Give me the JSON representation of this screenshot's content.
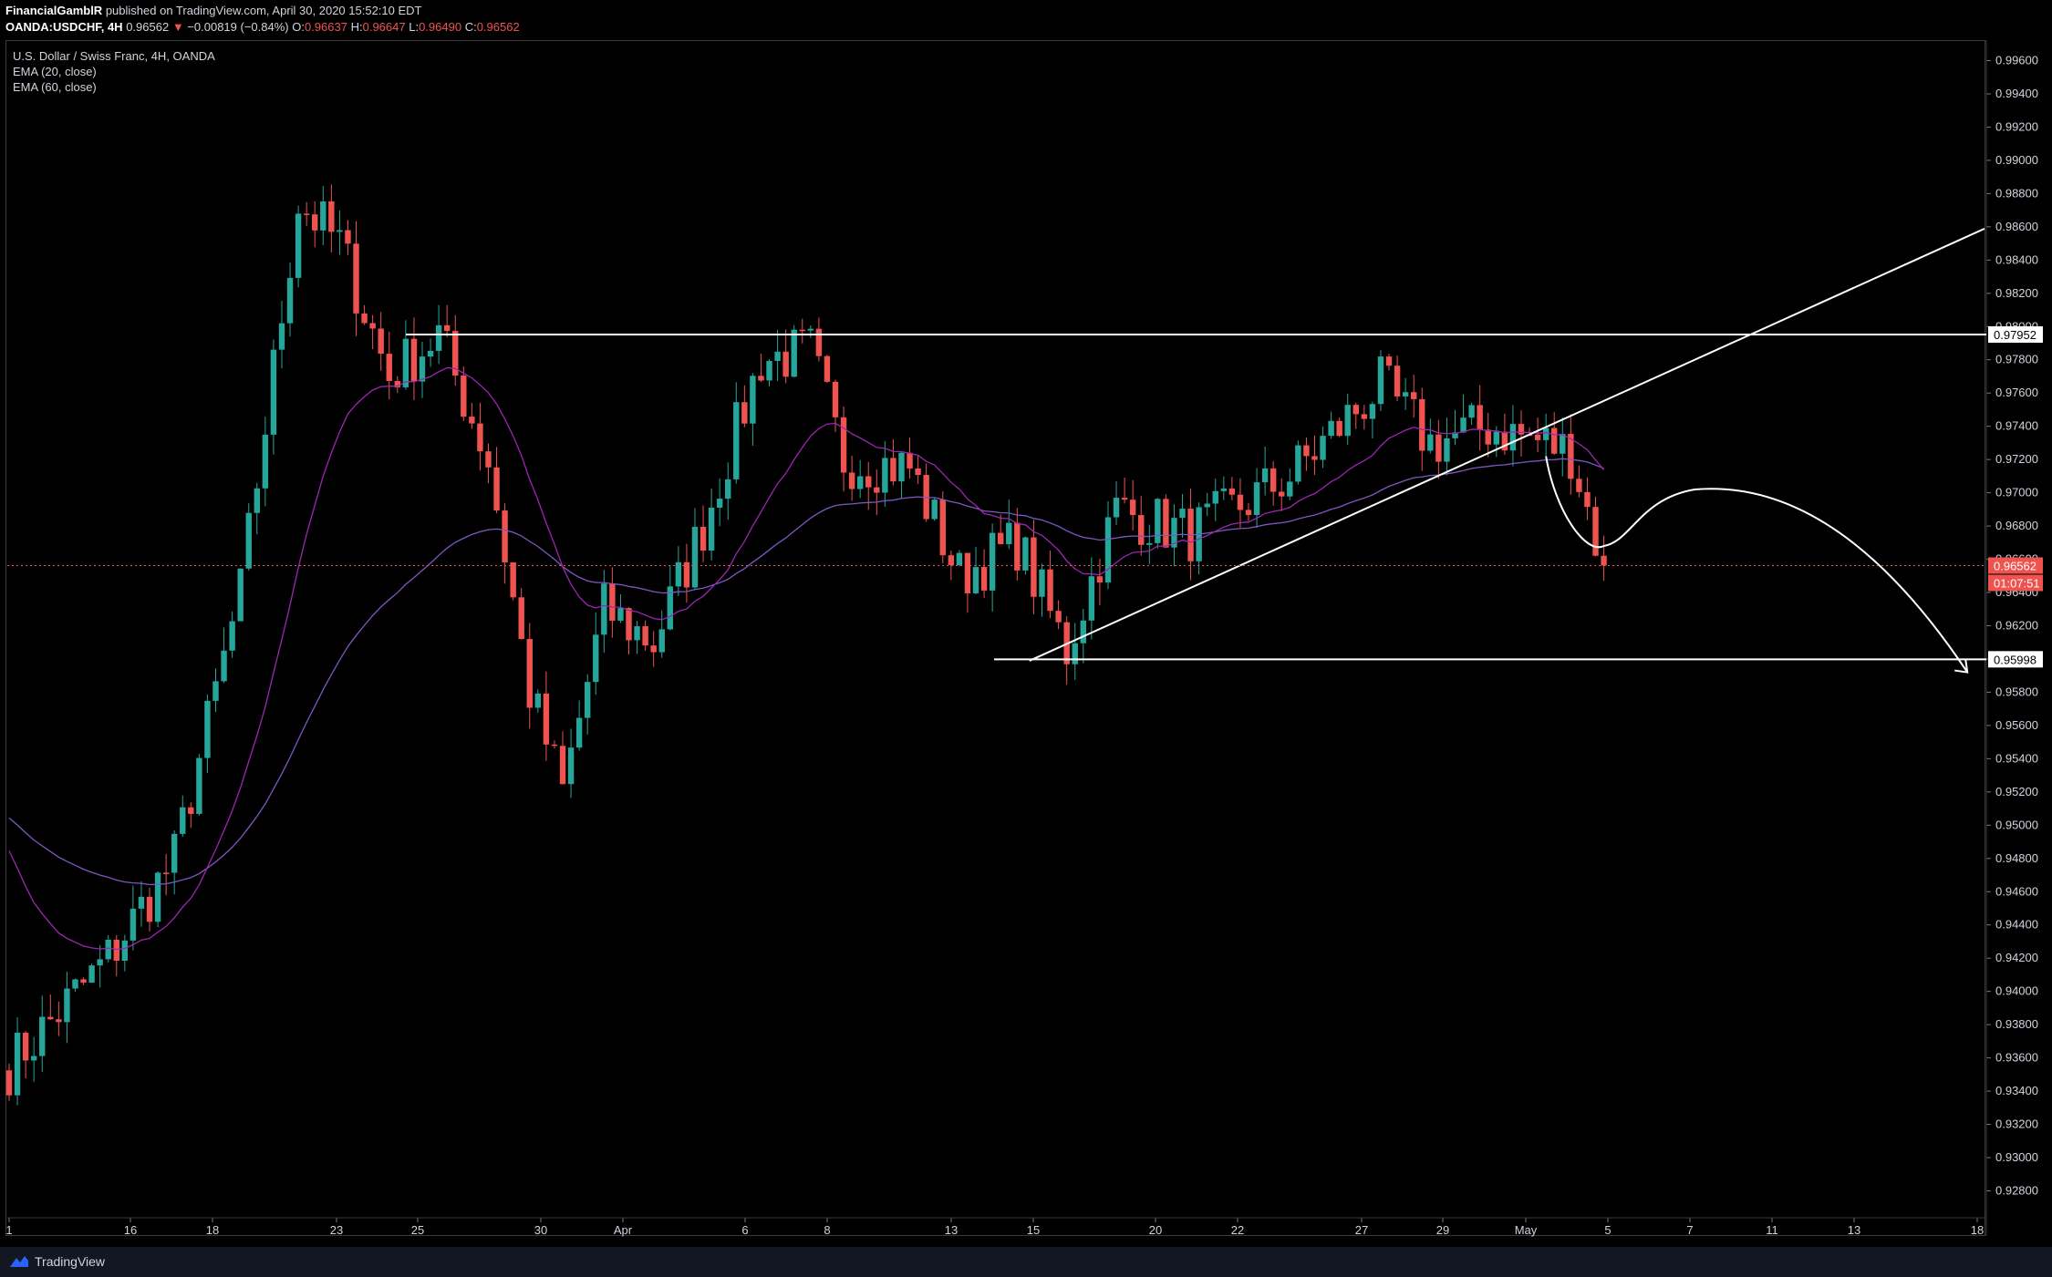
{
  "header": {
    "author": "FinancialGamblR",
    "published": "published on TradingView.com, April 30, 2020 15:52:10 EDT",
    "symbol": "OANDA:USDCHF, 4H",
    "last": "0.96562",
    "change_arrow": "▼",
    "change": "−0.00819 (−0.84%)",
    "open_label": "O:",
    "open": "0.96637",
    "high_label": "H:",
    "high": "0.96647",
    "low_label": "L:",
    "low": "0.96490",
    "close_label": "C:",
    "close": "0.96562"
  },
  "legend": {
    "title": "U.S. Dollar / Swiss Franc, 4H, OANDA",
    "ema20": "EMA (20, close)",
    "ema60": "EMA (60, close)"
  },
  "footer": {
    "brand": "TradingView"
  },
  "colors": {
    "up": "#26a69a",
    "down": "#ef5350",
    "ema20": "#9c27b0",
    "ema60": "#7e57c2",
    "drawing": "#ffffff",
    "price_badge": "#ef5350"
  },
  "chart_data": {
    "type": "candlestick",
    "ylim": [
      0.927,
      0.997
    ],
    "y_ticks": [
      "0.99600",
      "0.99400",
      "0.99200",
      "0.99000",
      "0.98800",
      "0.98600",
      "0.98400",
      "0.98200",
      "0.98000",
      "0.97800",
      "0.97600",
      "0.97400",
      "0.97200",
      "0.97000",
      "0.96800",
      "0.96600",
      "0.96400",
      "0.96200",
      "0.96000",
      "0.95800",
      "0.95600",
      "0.95400",
      "0.95200",
      "0.95000",
      "0.94800",
      "0.94600",
      "0.94400",
      "0.94200",
      "0.94000",
      "0.93800",
      "0.93600",
      "0.93400",
      "0.93200",
      "0.93000",
      "0.92800"
    ],
    "x_ticks": [
      "1",
      "16",
      "18",
      "23",
      "25",
      "30",
      "Apr",
      "6",
      "8",
      "13",
      "15",
      "20",
      "22",
      "27",
      "29",
      "May",
      "5",
      "7",
      "11",
      "13",
      "18"
    ],
    "price_labels": [
      {
        "value": 0.97952,
        "text": "0.97952",
        "style": "line"
      },
      {
        "value": 0.95998,
        "text": "0.95998",
        "style": "line"
      },
      {
        "value": 0.96562,
        "text": "0.96562",
        "style": "last"
      }
    ],
    "countdown": "01:07:51",
    "horizontal_levels": [
      0.97952,
      0.95998
    ],
    "anchors": [
      {
        "x": 0,
        "y": 0.9355
      },
      {
        "x": 12,
        "y": 0.942
      },
      {
        "x": 20,
        "y": 0.948
      },
      {
        "x": 28,
        "y": 0.964
      },
      {
        "x": 35,
        "y": 0.9875
      },
      {
        "x": 40,
        "y": 0.985
      },
      {
        "x": 46,
        "y": 0.977
      },
      {
        "x": 52,
        "y": 0.9795
      },
      {
        "x": 58,
        "y": 0.972
      },
      {
        "x": 63,
        "y": 0.958
      },
      {
        "x": 67,
        "y": 0.952
      },
      {
        "x": 72,
        "y": 0.963
      },
      {
        "x": 78,
        "y": 0.961
      },
      {
        "x": 84,
        "y": 0.968
      },
      {
        "x": 91,
        "y": 0.978
      },
      {
        "x": 97,
        "y": 0.9785
      },
      {
        "x": 101,
        "y": 0.972
      },
      {
        "x": 109,
        "y": 0.9715
      },
      {
        "x": 115,
        "y": 0.965
      },
      {
        "x": 122,
        "y": 0.967
      },
      {
        "x": 128,
        "y": 0.9605
      },
      {
        "x": 134,
        "y": 0.969
      },
      {
        "x": 143,
        "y": 0.9675
      },
      {
        "x": 155,
        "y": 0.971
      },
      {
        "x": 166,
        "y": 0.9765
      },
      {
        "x": 172,
        "y": 0.973
      },
      {
        "x": 179,
        "y": 0.974
      },
      {
        "x": 186,
        "y": 0.973
      },
      {
        "x": 189,
        "y": 0.9725
      },
      {
        "x": 193,
        "y": 0.9655
      }
    ],
    "total_bars": 194,
    "bar_x": {
      "bar0_date_index": 0,
      "note_bars_per_axis": 1
    },
    "trendline": {
      "from": {
        "bar": 129,
        "value": 0.96
      },
      "to": {
        "bar": 260,
        "value": 0.986
      }
    },
    "projection": [
      {
        "bar": 186,
        "value": 0.9722
      },
      {
        "bar": 193,
        "value": 0.9668
      },
      {
        "bar": 204,
        "value": 0.9702
      },
      {
        "bar": 237,
        "value": 0.9592
      }
    ]
  }
}
